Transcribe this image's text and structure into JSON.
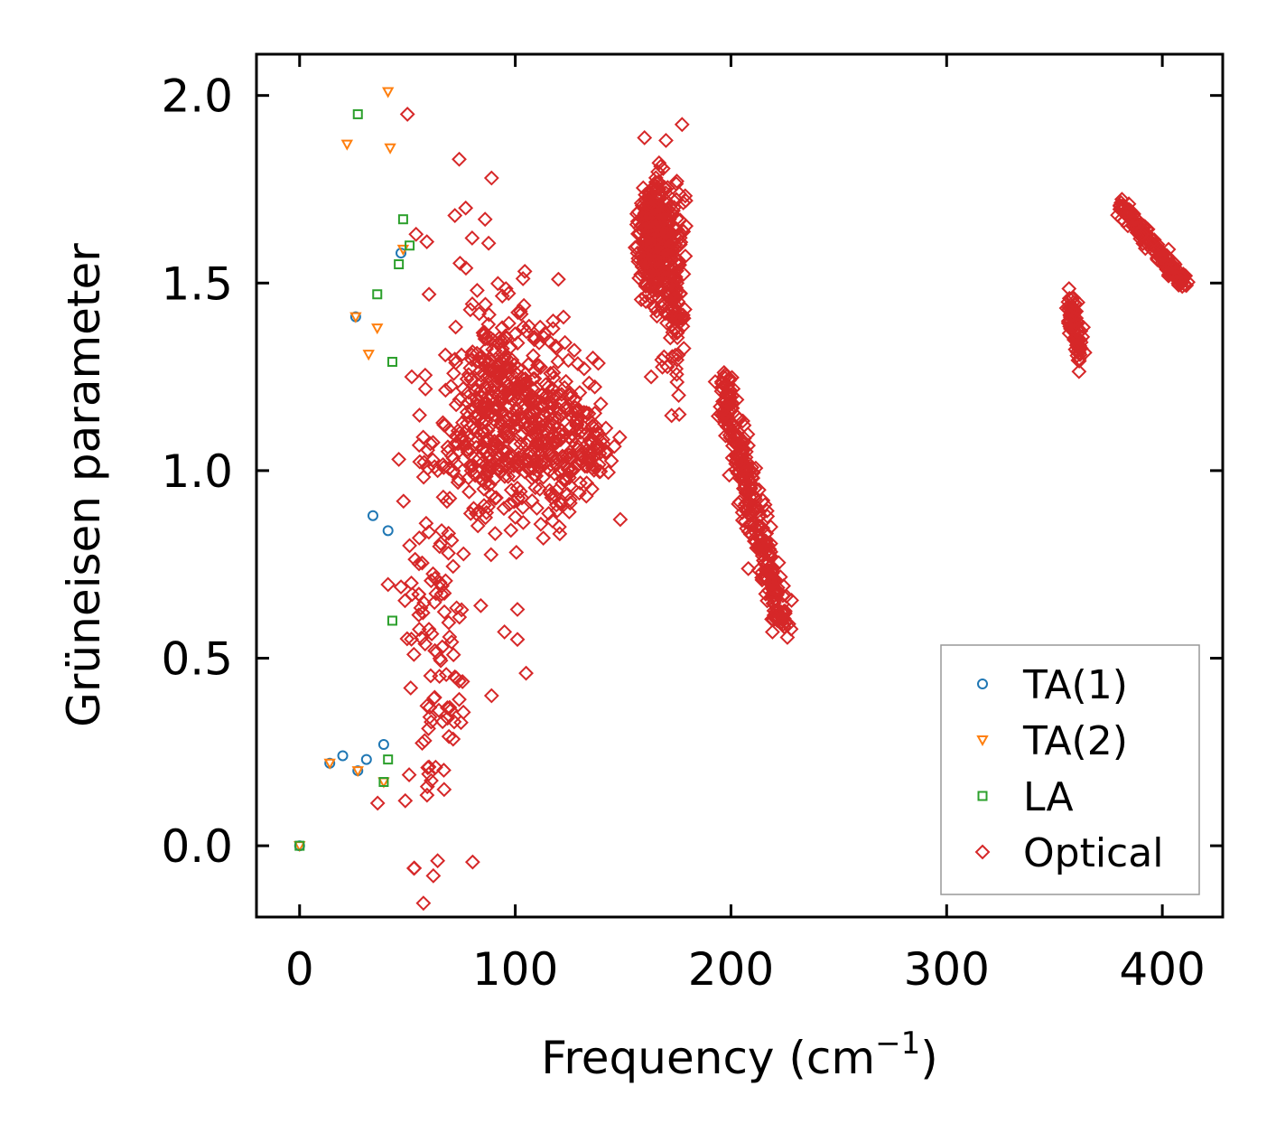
{
  "chart_data": {
    "type": "scatter",
    "title": "",
    "xlabel": "Frequency (cm",
    "xlabel_sup": "−1",
    "xlabel_close": ")",
    "ylabel": "Grüneisen parameter",
    "xlim": [
      -20,
      428
    ],
    "ylim": [
      -0.19,
      2.11
    ],
    "xticks": [
      0,
      100,
      200,
      300,
      400
    ],
    "xtick_labels": [
      "0",
      "100",
      "200",
      "300",
      "400"
    ],
    "yticks": [
      0.0,
      0.5,
      1.0,
      1.5,
      2.0
    ],
    "ytick_labels": [
      "0.0",
      "0.5",
      "1.0",
      "1.5",
      "2.0"
    ],
    "grid": false,
    "legend_position": "lower-right",
    "series": [
      {
        "name": "TA(1)",
        "marker": "circle",
        "color": "#1f77b4",
        "points": [
          [
            0,
            0
          ],
          [
            14,
            0.22
          ],
          [
            20,
            0.24
          ],
          [
            27,
            0.2
          ],
          [
            31,
            0.23
          ],
          [
            39,
            0.27
          ],
          [
            26,
            1.41
          ],
          [
            34,
            0.88
          ],
          [
            41,
            0.84
          ],
          [
            47,
            1.58
          ]
        ]
      },
      {
        "name": "TA(2)",
        "marker": "triangle-down",
        "color": "#ff7f0e",
        "points": [
          [
            0,
            0
          ],
          [
            14,
            0.22
          ],
          [
            22,
            1.87
          ],
          [
            27,
            0.2
          ],
          [
            26,
            1.41
          ],
          [
            32,
            1.31
          ],
          [
            36,
            1.38
          ],
          [
            39,
            0.17
          ],
          [
            41,
            2.01
          ],
          [
            42,
            1.86
          ],
          [
            48,
            1.59
          ]
        ]
      },
      {
        "name": "LA",
        "marker": "square",
        "color": "#2ca02c",
        "points": [
          [
            0,
            0
          ],
          [
            39,
            0.17
          ],
          [
            41,
            0.23
          ],
          [
            43,
            0.6
          ],
          [
            36,
            1.47
          ],
          [
            27,
            1.95
          ],
          [
            43,
            1.29
          ],
          [
            46,
            1.55
          ],
          [
            48,
            1.67
          ],
          [
            51,
            1.6
          ]
        ]
      },
      {
        "name": "Optical",
        "marker": "diamond",
        "color": "#d62728",
        "points": [
          [
            50,
            1.95
          ],
          [
            74,
            1.83
          ],
          [
            89,
            1.78
          ],
          [
            72,
            1.68
          ],
          [
            77,
            1.7
          ],
          [
            86,
            1.67
          ],
          [
            80,
            1.62
          ],
          [
            59,
            1.61
          ],
          [
            54,
            1.63
          ],
          [
            120,
            1.51
          ],
          [
            60,
            1.47
          ],
          [
            104,
            1.44
          ],
          [
            136,
            1.3
          ],
          [
            52,
            1.25
          ],
          [
            46,
            1.03
          ],
          [
            64,
            1.0
          ],
          [
            69,
            0.78
          ],
          [
            84,
            0.64
          ],
          [
            89,
            0.4
          ],
          [
            95,
            0.57
          ],
          [
            101,
            0.55
          ],
          [
            105,
            0.46
          ],
          [
            101,
            0.63
          ],
          [
            61,
            0.33
          ],
          [
            67,
            0.15
          ],
          [
            64,
            -0.04
          ],
          [
            62,
            -0.08
          ],
          [
            53,
            -0.06
          ],
          [
            49,
            0.12
          ],
          [
            60,
            0.21
          ],
          [
            51,
            0.8
          ],
          [
            47,
            0.69
          ],
          [
            53,
            0.51
          ],
          [
            58,
            0.28
          ],
          [
            72,
            0.45
          ],
          [
            74,
            0.39
          ],
          [
            176,
            1.15
          ],
          [
            163,
            1.25
          ],
          [
            110,
            0.9
          ],
          [
            113,
            0.82
          ],
          [
            125,
            0.89
          ]
        ],
        "clusters": [
          {
            "cx": 92,
            "cy": 1.17,
            "sx": 12,
            "sy": 0.14,
            "n": 380
          },
          {
            "cx": 118,
            "cy": 1.08,
            "sx": 12,
            "sy": 0.11,
            "n": 240
          },
          {
            "cx": 137,
            "cy": 1.05,
            "sx": 4,
            "sy": 0.04,
            "n": 40
          },
          {
            "cx": 62,
            "cy": 0.62,
            "sx": 8,
            "sy": 0.28,
            "n": 110
          },
          {
            "cx": 165,
            "cy": 1.62,
            "sx": 4,
            "sy": 0.08,
            "n": 340
          },
          {
            "cx": 174,
            "cy": 1.48,
            "sx": 2.5,
            "sy": 0.13,
            "n": 110
          }
        ],
        "bands": [
          {
            "x1": 196,
            "y1": 1.24,
            "x2": 224,
            "y2": 0.58,
            "sx": 2.2,
            "sy": 0.03,
            "n": 320
          },
          {
            "x1": 357,
            "y1": 1.46,
            "x2": 362,
            "y2": 1.31,
            "sx": 1.3,
            "sy": 0.02,
            "n": 80
          },
          {
            "x1": 380,
            "y1": 1.71,
            "x2": 410,
            "y2": 1.5,
            "sx": 1.0,
            "sy": 0.012,
            "n": 170
          }
        ]
      }
    ]
  }
}
